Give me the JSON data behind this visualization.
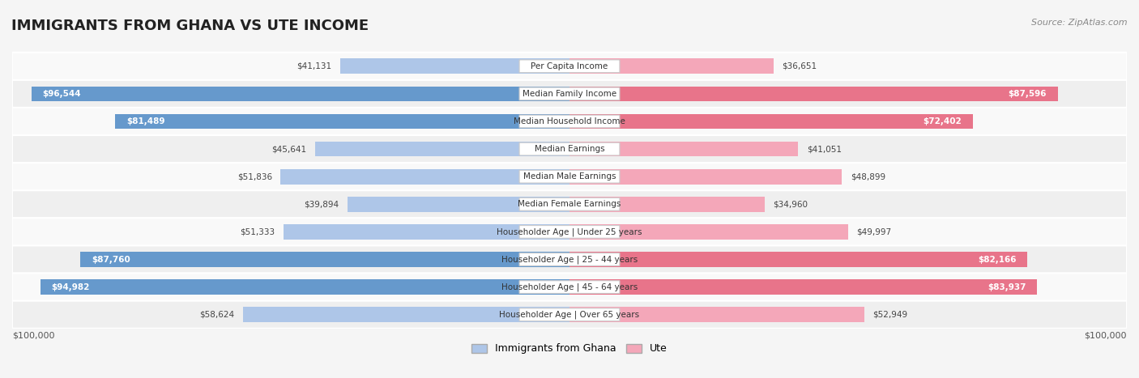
{
  "title": "IMMIGRANTS FROM GHANA VS UTE INCOME",
  "source": "Source: ZipAtlas.com",
  "categories": [
    "Per Capita Income",
    "Median Family Income",
    "Median Household Income",
    "Median Earnings",
    "Median Male Earnings",
    "Median Female Earnings",
    "Householder Age | Under 25 years",
    "Householder Age | 25 - 44 years",
    "Householder Age | 45 - 64 years",
    "Householder Age | Over 65 years"
  ],
  "ghana_values": [
    41131,
    96544,
    81489,
    45641,
    51836,
    39894,
    51333,
    87760,
    94982,
    58624
  ],
  "ute_values": [
    36651,
    87596,
    72402,
    41051,
    48899,
    34960,
    49997,
    82166,
    83937,
    52949
  ],
  "ghana_labels": [
    "$41,131",
    "$96,544",
    "$81,489",
    "$45,641",
    "$51,836",
    "$39,894",
    "$51,333",
    "$87,760",
    "$94,982",
    "$58,624"
  ],
  "ute_labels": [
    "$36,651",
    "$87,596",
    "$72,402",
    "$41,051",
    "$48,899",
    "$34,960",
    "$49,997",
    "$82,166",
    "$83,937",
    "$52,949"
  ],
  "max_value": 100000,
  "ghana_color_light": "#aec6e8",
  "ghana_color_dark": "#6699cc",
  "ute_color_light": "#f4a7b9",
  "ute_color_dark": "#e8748a",
  "threshold": 70000,
  "bg_color": "#f5f5f5",
  "row_bg_light": "#f9f9f9",
  "row_bg_dark": "#efefef",
  "legend_ghana": "Immigrants from Ghana",
  "legend_ute": "Ute",
  "xlabel_left": "$100,000",
  "xlabel_right": "$100,000"
}
